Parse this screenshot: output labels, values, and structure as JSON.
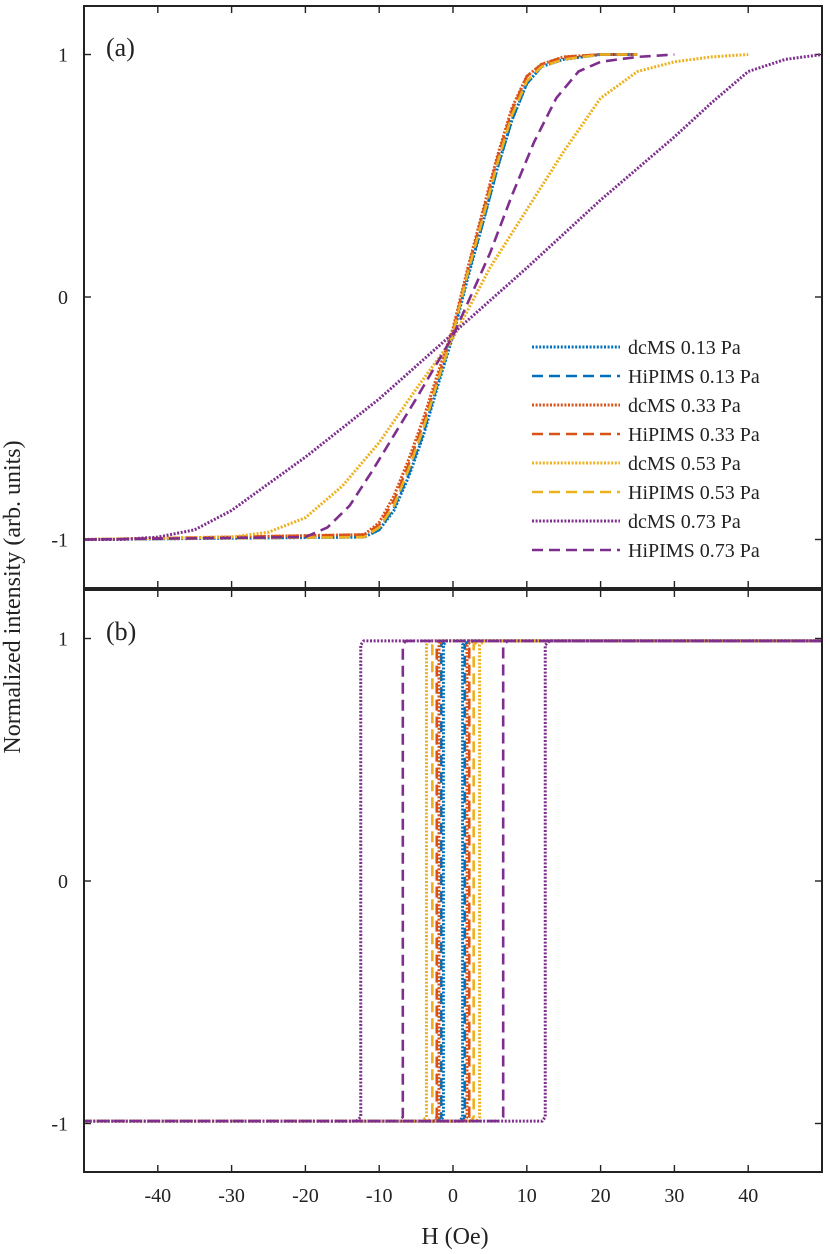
{
  "figure": {
    "ylabel": "Normalized intensity (arb. units)",
    "xlabel": "H (Oe)"
  },
  "chart_data": [
    {
      "panel": "(a)",
      "type": "line",
      "xlim": [
        -50,
        50
      ],
      "ylim": [
        -1.2,
        1.2
      ],
      "xticks": [
        -40,
        -30,
        -20,
        -10,
        0,
        10,
        20,
        30,
        40
      ],
      "yticks": [
        -1,
        0,
        1
      ],
      "ytick_labels": [
        "-1",
        "0",
        "1"
      ],
      "legend_position": "lower-right",
      "series": [
        {
          "name": "dcMS 0.13 Pa",
          "color": "#0072BD",
          "style": "dotted",
          "x": [
            -50,
            -12,
            -10,
            -8,
            -6,
            -4,
            -2,
            0,
            2,
            4,
            6,
            8,
            10,
            12,
            15,
            20,
            25
          ],
          "y": [
            -1,
            -0.99,
            -0.96,
            -0.88,
            -0.74,
            -0.57,
            -0.36,
            -0.16,
            0.08,
            0.3,
            0.53,
            0.73,
            0.88,
            0.95,
            0.98,
            1,
            1
          ]
        },
        {
          "name": "HiPIMS 0.13 Pa",
          "color": "#0072BD",
          "style": "dashed",
          "x": [
            -50,
            -12,
            -10,
            -8,
            -6,
            -4,
            -2,
            0,
            2,
            4,
            6,
            8,
            10,
            12,
            15,
            20,
            25
          ],
          "y": [
            -1,
            -0.99,
            -0.96,
            -0.87,
            -0.73,
            -0.56,
            -0.35,
            -0.15,
            0.09,
            0.3,
            0.53,
            0.73,
            0.88,
            0.95,
            0.98,
            1,
            1
          ]
        },
        {
          "name": "dcMS 0.33 Pa",
          "color": "#D95319",
          "style": "dotted",
          "x": [
            -50,
            -12,
            -10,
            -8,
            -6,
            -4,
            -2,
            0,
            2,
            4,
            6,
            8,
            10,
            12,
            15,
            20,
            25
          ],
          "y": [
            -1,
            -0.98,
            -0.93,
            -0.82,
            -0.67,
            -0.5,
            -0.31,
            -0.13,
            0.12,
            0.35,
            0.58,
            0.78,
            0.91,
            0.96,
            0.99,
            1,
            1
          ]
        },
        {
          "name": "HiPIMS 0.33 Pa",
          "color": "#D95319",
          "style": "dashed",
          "x": [
            -50,
            -12,
            -10,
            -8,
            -6,
            -4,
            -2,
            0,
            2,
            4,
            6,
            8,
            10,
            12,
            15,
            20,
            25
          ],
          "y": [
            -1,
            -0.98,
            -0.94,
            -0.84,
            -0.69,
            -0.52,
            -0.33,
            -0.14,
            0.11,
            0.34,
            0.57,
            0.77,
            0.91,
            0.96,
            0.99,
            1,
            1
          ]
        },
        {
          "name": "dcMS 0.53 Pa",
          "color": "#EDB120",
          "style": "dotted",
          "x": [
            -50,
            -30,
            -25,
            -20,
            -15,
            -10,
            -5,
            0,
            5,
            10,
            15,
            20,
            25,
            30,
            35,
            40
          ],
          "y": [
            -1,
            -0.99,
            -0.97,
            -0.91,
            -0.78,
            -0.6,
            -0.38,
            -0.17,
            0.12,
            0.36,
            0.6,
            0.82,
            0.93,
            0.97,
            0.99,
            1
          ]
        },
        {
          "name": "HiPIMS 0.53 Pa",
          "color": "#EDB120",
          "style": "dashed",
          "x": [
            -50,
            -12,
            -10,
            -8,
            -6,
            -4,
            -2,
            0,
            2,
            4,
            6,
            8,
            10,
            12,
            15,
            20,
            25
          ],
          "y": [
            -1,
            -0.99,
            -0.95,
            -0.86,
            -0.71,
            -0.54,
            -0.34,
            -0.15,
            0.1,
            0.32,
            0.55,
            0.75,
            0.89,
            0.95,
            0.98,
            1,
            1
          ]
        },
        {
          "name": "dcMS 0.73 Pa",
          "color": "#7E2F8E",
          "style": "dotted",
          "x": [
            -50,
            -45,
            -40,
            -35,
            -30,
            -20,
            -10,
            0,
            10,
            20,
            30,
            35,
            40,
            45,
            50
          ],
          "y": [
            -1,
            -1,
            -0.99,
            -0.96,
            -0.88,
            -0.66,
            -0.42,
            -0.15,
            0.12,
            0.4,
            0.66,
            0.8,
            0.93,
            0.98,
            1
          ]
        },
        {
          "name": "HiPIMS 0.73 Pa",
          "color": "#7E2F8E",
          "style": "dashed",
          "x": [
            -50,
            -20,
            -17,
            -14,
            -11,
            -8,
            -5,
            0,
            5,
            8,
            11,
            14,
            17,
            20,
            25,
            30
          ],
          "y": [
            -1,
            -0.99,
            -0.95,
            -0.86,
            -0.72,
            -0.57,
            -0.42,
            -0.16,
            0.18,
            0.42,
            0.64,
            0.82,
            0.93,
            0.97,
            0.99,
            1
          ]
        }
      ]
    },
    {
      "panel": "(b)",
      "type": "line",
      "subtype": "hysteresis loops",
      "xlim": [
        -50,
        50
      ],
      "ylim": [
        -1.2,
        1.2
      ],
      "xticks": [
        -40,
        -30,
        -20,
        -10,
        0,
        10,
        20,
        30,
        40
      ],
      "yticks": [
        -1,
        0,
        1
      ],
      "ytick_labels": [
        "-1",
        "0",
        "1"
      ],
      "series": [
        {
          "name": "dcMS 0.13 Pa",
          "color": "#0072BD",
          "style": "dotted",
          "coercive_field": 1.3
        },
        {
          "name": "HiPIMS 0.13 Pa",
          "color": "#0072BD",
          "style": "dashed",
          "coercive_field": 1.6
        },
        {
          "name": "dcMS 0.33 Pa",
          "color": "#D95319",
          "style": "dotted",
          "coercive_field": 1.9
        },
        {
          "name": "HiPIMS 0.33 Pa",
          "color": "#D95319",
          "style": "dashed",
          "coercive_field": 2.2
        },
        {
          "name": "dcMS 0.53 Pa",
          "color": "#EDB120",
          "style": "dotted",
          "coercive_field": 3.6
        },
        {
          "name": "HiPIMS 0.53 Pa",
          "color": "#EDB120",
          "style": "dashed",
          "coercive_field": 2.8
        },
        {
          "name": "dcMS 0.73 Pa",
          "color": "#7E2F8E",
          "style": "dotted",
          "coercive_field": 12.5
        },
        {
          "name": "HiPIMS 0.73 Pa",
          "color": "#7E2F8E",
          "style": "dashed",
          "coercive_field": 6.8
        }
      ]
    }
  ]
}
